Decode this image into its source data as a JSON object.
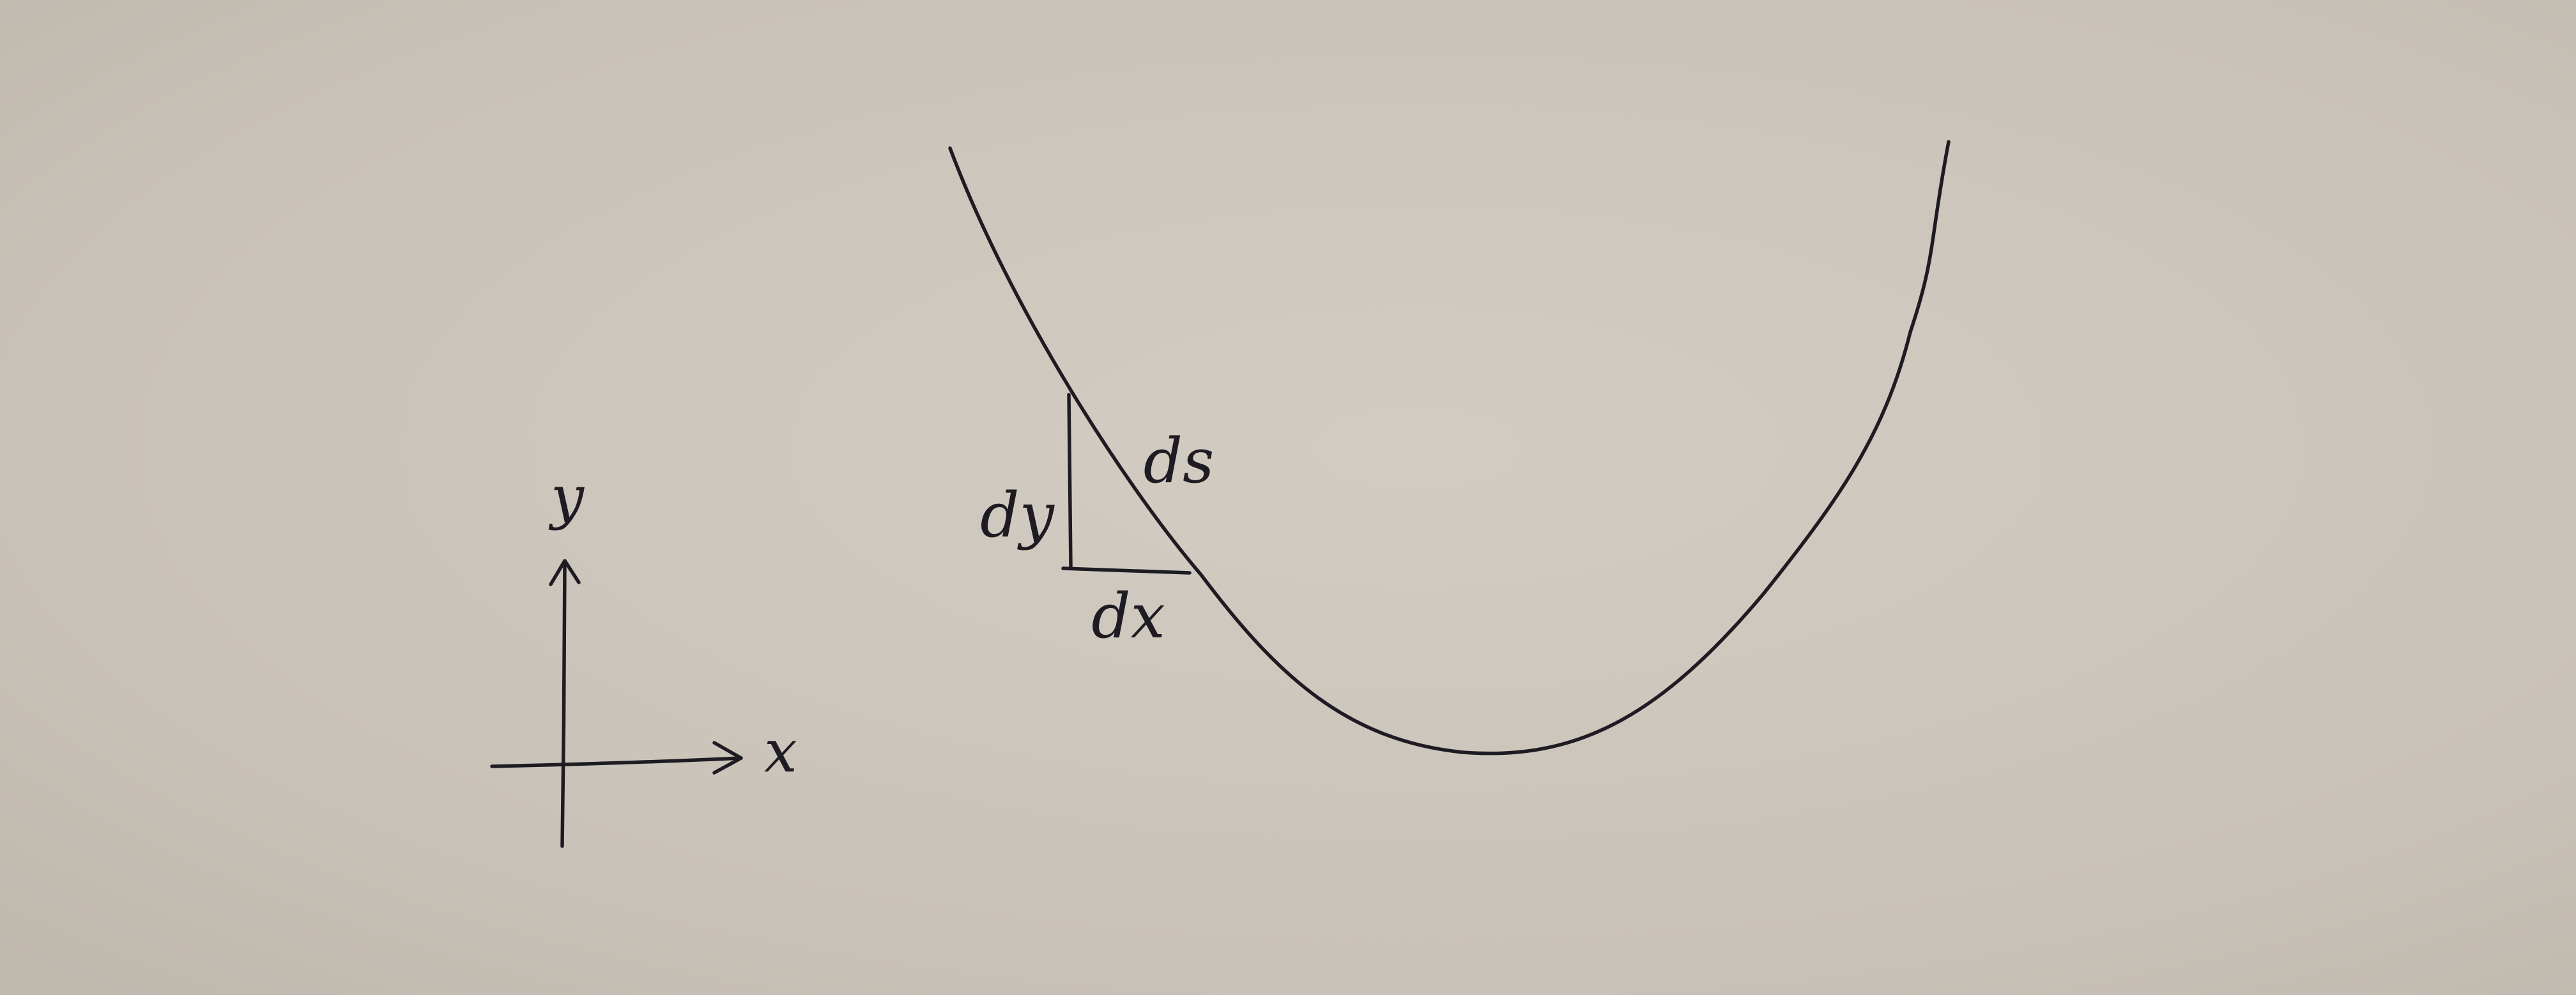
{
  "diagram": {
    "axes": {
      "x_label": "x",
      "y_label": "y"
    },
    "triangle": {
      "hypotenuse_label": "ds",
      "vertical_label": "dy",
      "horizontal_label": "dx"
    },
    "colors": {
      "ink": "#1e1c22",
      "paper": "#cbc4ba"
    }
  }
}
